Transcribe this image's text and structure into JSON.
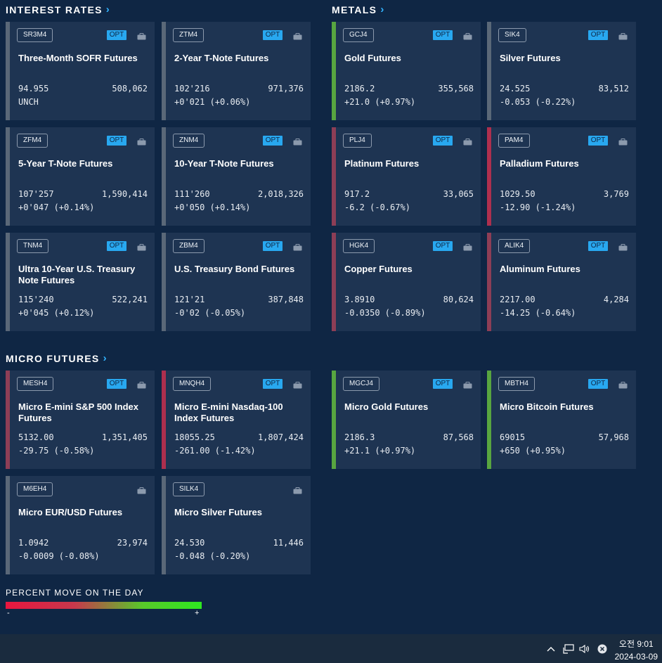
{
  "sections": {
    "interest_rates": "INTEREST RATES",
    "metals": "METALS",
    "micro_futures": "MICRO FUTURES"
  },
  "opt_label": "OPT",
  "cards": [
    {
      "symbol": "SR3M4",
      "name": "Three-Month SOFR Futures",
      "price": "94.955",
      "volume": "508,062",
      "change": "UNCH",
      "has_opt": true,
      "status": "flat"
    },
    {
      "symbol": "ZTM4",
      "name": "2-Year T-Note Futures",
      "price": "102'216",
      "volume": "971,376",
      "change": "+0'021 (+0.06%)",
      "has_opt": true,
      "status": "flat"
    },
    {
      "symbol": "GCJ4",
      "name": "Gold Futures",
      "price": "2186.2",
      "volume": "355,568",
      "change": "+21.0 (+0.97%)",
      "has_opt": true,
      "status": "pos"
    },
    {
      "symbol": "SIK4",
      "name": "Silver Futures",
      "price": "24.525",
      "volume": "83,512",
      "change": "-0.053 (-0.22%)",
      "has_opt": true,
      "status": "flat"
    },
    {
      "symbol": "ZFM4",
      "name": "5-Year T-Note Futures",
      "price": "107'257",
      "volume": "1,590,414",
      "change": "+0'047 (+0.14%)",
      "has_opt": true,
      "status": "flat"
    },
    {
      "symbol": "ZNM4",
      "name": "10-Year T-Note Futures",
      "price": "111'260",
      "volume": "2,018,326",
      "change": "+0'050 (+0.14%)",
      "has_opt": true,
      "status": "flat"
    },
    {
      "symbol": "PLJ4",
      "name": "Platinum Futures",
      "price": "917.2",
      "volume": "33,065",
      "change": "-6.2 (-0.67%)",
      "has_opt": true,
      "status": "neg"
    },
    {
      "symbol": "PAM4",
      "name": "Palladium Futures",
      "price": "1029.50",
      "volume": "3,769",
      "change": "-12.90 (-1.24%)",
      "has_opt": true,
      "status": "neg2"
    },
    {
      "symbol": "TNM4",
      "name": "Ultra 10-Year U.S. Treasury Note Futures",
      "price": "115'240",
      "volume": "522,241",
      "change": "+0'045 (+0.12%)",
      "has_opt": true,
      "status": "flat"
    },
    {
      "symbol": "ZBM4",
      "name": "U.S. Treasury Bond Futures",
      "price": "121'21",
      "volume": "387,848",
      "change": "-0'02 (-0.05%)",
      "has_opt": true,
      "status": "flat"
    },
    {
      "symbol": "HGK4",
      "name": "Copper Futures",
      "price": "3.8910",
      "volume": "80,624",
      "change": "-0.0350 (-0.89%)",
      "has_opt": true,
      "status": "neg"
    },
    {
      "symbol": "ALIK4",
      "name": "Aluminum Futures",
      "price": "2217.00",
      "volume": "4,284",
      "change": "-14.25 (-0.64%)",
      "has_opt": true,
      "status": "neg"
    },
    {
      "symbol": "MESH4",
      "name": "Micro E-mini S&P 500 Index Futures",
      "price": "5132.00",
      "volume": "1,351,405",
      "change": "-29.75 (-0.58%)",
      "has_opt": true,
      "status": "neg"
    },
    {
      "symbol": "MNQH4",
      "name": "Micro E-mini Nasdaq-100 Index Futures",
      "price": "18055.25",
      "volume": "1,807,424",
      "change": "-261.00 (-1.42%)",
      "has_opt": true,
      "status": "neg2"
    },
    {
      "symbol": "MGCJ4",
      "name": "Micro Gold Futures",
      "price": "2186.3",
      "volume": "87,568",
      "change": "+21.1 (+0.97%)",
      "has_opt": true,
      "status": "pos"
    },
    {
      "symbol": "MBTH4",
      "name": "Micro Bitcoin Futures",
      "price": "69015",
      "volume": "57,968",
      "change": "+650 (+0.95%)",
      "has_opt": true,
      "status": "pos"
    },
    {
      "symbol": "M6EH4",
      "name": "Micro EUR/USD Futures",
      "price": "1.0942",
      "volume": "23,974",
      "change": "-0.0009 (-0.08%)",
      "has_opt": false,
      "status": "flat"
    },
    {
      "symbol": "SILK4",
      "name": "Micro Silver Futures",
      "price": "24.530",
      "volume": "11,446",
      "change": "-0.048 (-0.20%)",
      "has_opt": false,
      "status": "flat"
    }
  ],
  "legend": {
    "title": "PERCENT MOVE ON THE DAY",
    "minus": "-",
    "plus": "+"
  },
  "taskbar": {
    "time": "오전 9:01",
    "date": "2024-03-09"
  },
  "colors": {
    "background": "#0f2644",
    "card": "#1e3452",
    "positive": "#58a540",
    "negative": "#8d3e56",
    "neutral": "#5a6878",
    "opt_badge": "#28a8f0"
  }
}
